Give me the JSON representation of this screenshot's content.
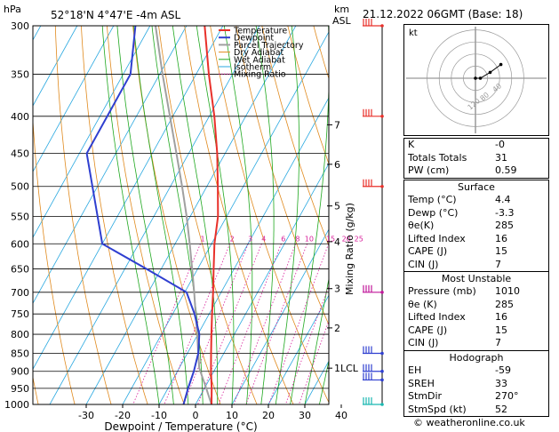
{
  "header": {
    "hpa_label": "hPa",
    "location": "52°18'N  4°47'E  -4m  ASL",
    "km_label": "km",
    "asl_label": "ASL",
    "datetime": "21.12.2022  06GMT  (Base: 18)"
  },
  "legend": [
    {
      "label": "Temperature",
      "color": "#e8302a"
    },
    {
      "label": "Dewpoint",
      "color": "#2f3fd0"
    },
    {
      "label": "Parcel Trajectory",
      "color": "#a0a0a0"
    },
    {
      "label": "Dry Adiabat",
      "color": "#e08a1e"
    },
    {
      "label": "Wet Adiabat",
      "color": "#1fa81f"
    },
    {
      "label": "Isotherm",
      "color": "#29a8e0"
    },
    {
      "label": "Mixing Ratio",
      "color": "#d81e9a"
    }
  ],
  "chart_data": {
    "type": "line",
    "xlabel": "Dewpoint / Temperature (°C)",
    "ylabel_right": "Mixing Ratio (g/kg)",
    "x_ticks": [
      -30,
      -20,
      -10,
      0,
      10,
      20,
      30,
      40
    ],
    "pressure_levels": [
      300,
      350,
      400,
      450,
      500,
      550,
      600,
      650,
      700,
      750,
      800,
      850,
      900,
      950,
      1000
    ],
    "km_ticks": [
      {
        "label": "7",
        "p": 411
      },
      {
        "label": "6",
        "p": 466
      },
      {
        "label": "5",
        "p": 532
      },
      {
        "label": "4",
        "p": 596
      },
      {
        "label": "3",
        "p": 692
      },
      {
        "label": "2",
        "p": 784
      },
      {
        "label": "1LCL",
        "p": 891
      }
    ],
    "mixing_ratio_labels": [
      "1",
      "2",
      "3",
      "4",
      "6",
      "8",
      "10",
      "15",
      "20",
      "25"
    ],
    "mixing_ratio_values": [
      1,
      2,
      3,
      4,
      6,
      8,
      10,
      15,
      20,
      25
    ],
    "mixing_ratio_label_p": 590,
    "skew_per_decade_degC": 110,
    "temperature": [
      {
        "p": 1000,
        "t": 4.4
      },
      {
        "p": 950,
        "t": 2.0
      },
      {
        "p": 900,
        "t": -0.8
      },
      {
        "p": 850,
        "t": -3.5
      },
      {
        "p": 800,
        "t": -6.3
      },
      {
        "p": 750,
        "t": -9.2
      },
      {
        "p": 700,
        "t": -12.2
      },
      {
        "p": 650,
        "t": -15.6
      },
      {
        "p": 600,
        "t": -19.2
      },
      {
        "p": 550,
        "t": -22.4
      },
      {
        "p": 500,
        "t": -27.0
      },
      {
        "p": 450,
        "t": -32.2
      },
      {
        "p": 400,
        "t": -38.6
      },
      {
        "p": 350,
        "t": -46.5
      },
      {
        "p": 300,
        "t": -55.0
      }
    ],
    "dewpoint": [
      {
        "p": 1000,
        "t": -3.3
      },
      {
        "p": 950,
        "t": -4.5
      },
      {
        "p": 900,
        "t": -5.5
      },
      {
        "p": 850,
        "t": -7.0
      },
      {
        "p": 800,
        "t": -9.6
      },
      {
        "p": 750,
        "t": -14.0
      },
      {
        "p": 700,
        "t": -19.5
      },
      {
        "p": 650,
        "t": -34.0
      },
      {
        "p": 600,
        "t": -50.0
      },
      {
        "p": 450,
        "t": -68.0
      },
      {
        "p": 350,
        "t": -68.0
      },
      {
        "p": 300,
        "t": -74.0
      }
    ],
    "parcel": [
      {
        "p": 1000,
        "t": 4.4
      },
      {
        "p": 950,
        "t": 0.5
      },
      {
        "p": 891,
        "t": -4.5
      },
      {
        "p": 850,
        "t": -7.0
      },
      {
        "p": 800,
        "t": -10.2
      },
      {
        "p": 750,
        "t": -13.7
      },
      {
        "p": 700,
        "t": -17.4
      },
      {
        "p": 650,
        "t": -21.5
      },
      {
        "p": 600,
        "t": -26.0
      },
      {
        "p": 550,
        "t": -31.0
      },
      {
        "p": 500,
        "t": -36.8
      },
      {
        "p": 450,
        "t": -43.4
      },
      {
        "p": 400,
        "t": -50.8
      },
      {
        "p": 350,
        "t": -59.2
      },
      {
        "p": 300,
        "t": -68.5
      }
    ],
    "wind_barbs": [
      {
        "p": 300,
        "color": "#e8302a"
      },
      {
        "p": 400,
        "color": "#e8302a"
      },
      {
        "p": 500,
        "color": "#e8302a"
      },
      {
        "p": 700,
        "color": "#c0179a"
      },
      {
        "p": 850,
        "color": "#2f3fd0"
      },
      {
        "p": 900,
        "color": "#2f3fd0"
      },
      {
        "p": 925,
        "color": "#2f3fd0"
      },
      {
        "p": 1000,
        "color": "#19b8b0"
      }
    ]
  },
  "hodograph": {
    "kt_label": "kt",
    "rings": [
      20,
      40,
      60,
      80
    ],
    "ring_labels": [
      "40",
      "80",
      "120"
    ],
    "trace": [
      [
        0,
        0
      ],
      [
        5,
        0
      ],
      [
        15,
        6
      ],
      [
        26,
        14
      ]
    ]
  },
  "indices": [
    {
      "label": "K",
      "value": "-0"
    },
    {
      "label": "Totals Totals",
      "value": "31"
    },
    {
      "label": "PW (cm)",
      "value": "0.59"
    }
  ],
  "surface": {
    "title": "Surface",
    "rows": [
      {
        "label": "Temp (°C)",
        "value": "4.4"
      },
      {
        "label": "Dewp (°C)",
        "value": "-3.3"
      },
      {
        "label": "θe(K)",
        "value": "285"
      },
      {
        "label": "Lifted Index",
        "value": "16"
      },
      {
        "label": "CAPE (J)",
        "value": "15"
      },
      {
        "label": "CIN (J)",
        "value": "7"
      }
    ]
  },
  "most_unstable": {
    "title": "Most Unstable",
    "rows": [
      {
        "label": "Pressure (mb)",
        "value": "1010"
      },
      {
        "label": "θe (K)",
        "value": "285"
      },
      {
        "label": "Lifted Index",
        "value": "16"
      },
      {
        "label": "CAPE (J)",
        "value": "15"
      },
      {
        "label": "CIN (J)",
        "value": "7"
      }
    ]
  },
  "hodograph_table": {
    "title": "Hodograph",
    "rows": [
      {
        "label": "EH",
        "value": "-59"
      },
      {
        "label": "SREH",
        "value": "33"
      },
      {
        "label": "StmDir",
        "value": "270°"
      },
      {
        "label": "StmSpd (kt)",
        "value": "52"
      }
    ]
  },
  "footer": {
    "copyright": "© weatheronline.co.uk"
  }
}
